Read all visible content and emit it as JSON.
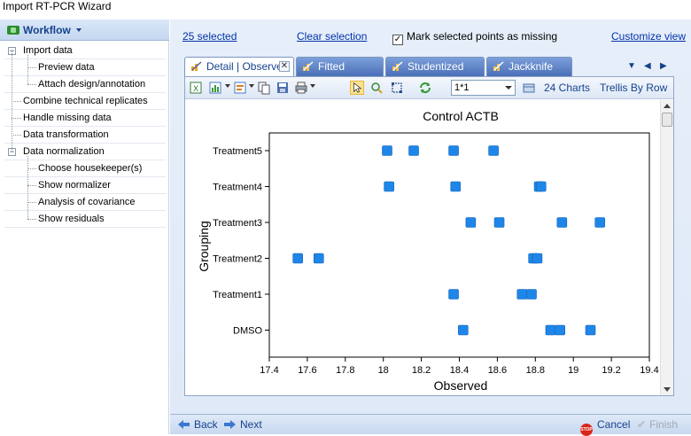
{
  "window": {
    "title": "Import RT-PCR Wizard"
  },
  "workflow": {
    "button_label": "Workflow",
    "tree": [
      {
        "label": "Import data",
        "level": 0,
        "expandable": true
      },
      {
        "label": "Preview data",
        "level": 1
      },
      {
        "label": "Attach design/annotation",
        "level": 1
      },
      {
        "label": "Combine technical replicates",
        "level": 0
      },
      {
        "label": "Handle missing data",
        "level": 0
      },
      {
        "label": "Data transformation",
        "level": 0
      },
      {
        "label": "Data normalization",
        "level": 0,
        "expandable": true
      },
      {
        "label": "Choose housekeeper(s)",
        "level": 1
      },
      {
        "label": "Show normalizer",
        "level": 1
      },
      {
        "label": "Analysis of covariance",
        "level": 1
      },
      {
        "label": "Show residuals",
        "level": 1
      }
    ]
  },
  "selection": {
    "selected_link": "25 selected",
    "clear_link": "Clear selection",
    "mark_missing_label": "Mark selected points as missing",
    "mark_missing_checked": true,
    "customize_link": "Customize view"
  },
  "tabs": [
    {
      "label": "Detail | Observed",
      "active": true
    },
    {
      "label": "Fitted",
      "active": false
    },
    {
      "label": "Studentized",
      "active": false
    },
    {
      "label": "Jackknife",
      "active": false
    }
  ],
  "toolbar": {
    "layout_value": "1*1",
    "charts_label": "24 Charts",
    "trellis_label": "Trellis By Row"
  },
  "chart_data": {
    "type": "scatter",
    "title": "Control ACTB",
    "xlabel": "Observed",
    "ylabel": "Grouping",
    "xlim": [
      17.4,
      19.4
    ],
    "xticks": [
      "17.4",
      "17.6",
      "17.8",
      "18",
      "18.2",
      "18.4",
      "18.6",
      "18.8",
      "19",
      "19.2",
      "19.4"
    ],
    "categories": [
      "Treatment5",
      "Treatment4",
      "Treatment3",
      "Treatment2",
      "Treatment1",
      "DMSO"
    ],
    "marker_color": "#1e86e8",
    "grid": false,
    "points": [
      {
        "group": "Treatment5",
        "x": 18.02
      },
      {
        "group": "Treatment5",
        "x": 18.16
      },
      {
        "group": "Treatment5",
        "x": 18.37
      },
      {
        "group": "Treatment5",
        "x": 18.58
      },
      {
        "group": "Treatment4",
        "x": 18.03
      },
      {
        "group": "Treatment4",
        "x": 18.38
      },
      {
        "group": "Treatment4",
        "x": 18.82
      },
      {
        "group": "Treatment4",
        "x": 18.83
      },
      {
        "group": "Treatment3",
        "x": 18.46
      },
      {
        "group": "Treatment3",
        "x": 18.61
      },
      {
        "group": "Treatment3",
        "x": 18.94
      },
      {
        "group": "Treatment3",
        "x": 19.14
      },
      {
        "group": "Treatment2",
        "x": 17.55
      },
      {
        "group": "Treatment2",
        "x": 17.66
      },
      {
        "group": "Treatment2",
        "x": 18.79
      },
      {
        "group": "Treatment2",
        "x": 18.81
      },
      {
        "group": "Treatment1",
        "x": 18.37
      },
      {
        "group": "Treatment1",
        "x": 18.73
      },
      {
        "group": "Treatment1",
        "x": 18.78
      },
      {
        "group": "DMSO",
        "x": 18.42
      },
      {
        "group": "DMSO",
        "x": 18.88
      },
      {
        "group": "DMSO",
        "x": 18.93
      },
      {
        "group": "DMSO",
        "x": 19.09
      }
    ]
  },
  "footer": {
    "back_label": "Back",
    "next_label": "Next",
    "cancel_label": "Cancel",
    "finish_label": "Finish",
    "stop_icon_text": "STOP"
  }
}
